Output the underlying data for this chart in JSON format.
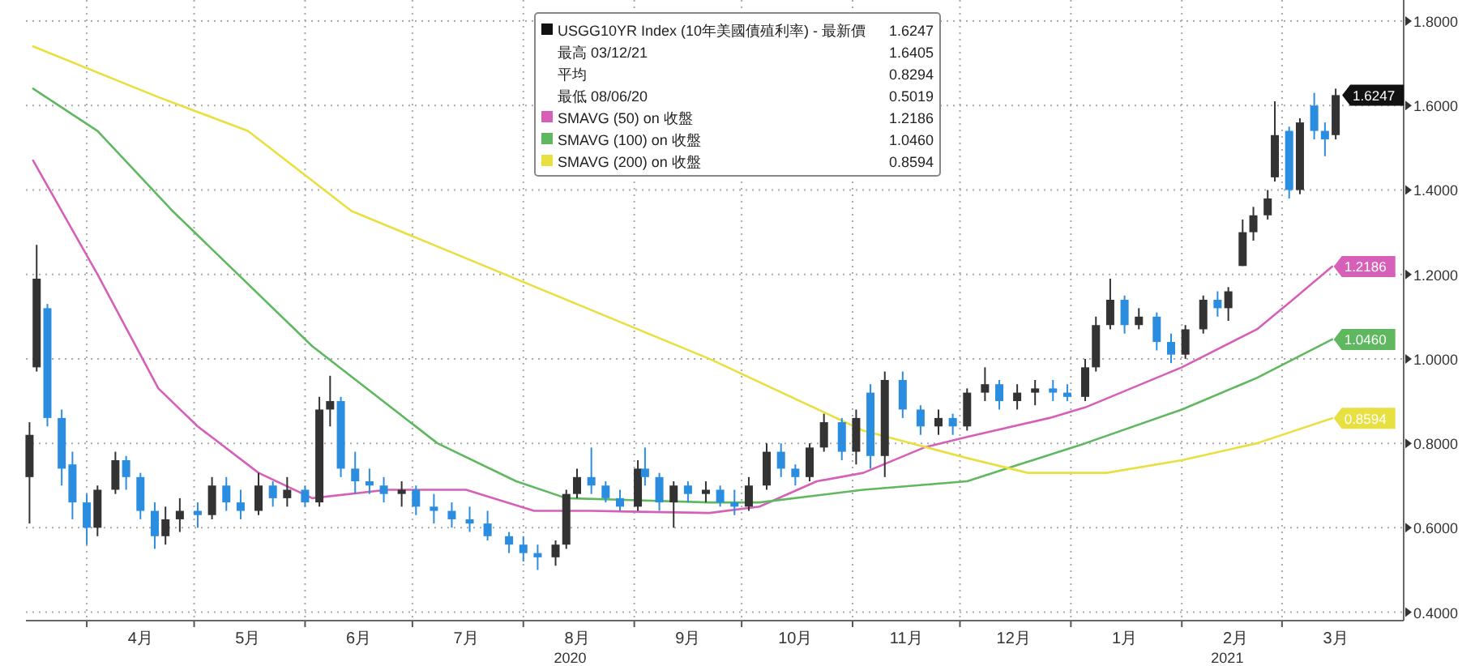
{
  "chart_data": {
    "type": "candlestick",
    "legend_title": "USGG10YR Index (10年美國債殖利率) - 最新價",
    "legend": "top",
    "grid": true,
    "annotations": [
      "最高 03/12/21 1.6405",
      "平均 0.8294",
      "最低 08/06/20 0.5019",
      "2020",
      "2021"
    ],
    "xlim": [
      "2020-03-15",
      "2021-04-04"
    ],
    "ylim": [
      0.38,
      1.85
    ],
    "xticks": [
      {
        "value": "2020-04-01",
        "label": null
      },
      {
        "value": "2020-04-16",
        "label": "4月"
      },
      {
        "value": "2020-05-01",
        "label": null
      },
      {
        "value": "2020-05-16",
        "label": "5月"
      },
      {
        "value": "2020-06-01",
        "label": null
      },
      {
        "value": "2020-06-16",
        "label": "6月"
      },
      {
        "value": "2020-07-01",
        "label": null
      },
      {
        "value": "2020-07-16",
        "label": "7月"
      },
      {
        "value": "2020-08-01",
        "label": null
      },
      {
        "value": "2020-08-16",
        "label": "8月"
      },
      {
        "value": "2020-09-01",
        "label": null
      },
      {
        "value": "2020-09-16",
        "label": "9月"
      },
      {
        "value": "2020-10-01",
        "label": null
      },
      {
        "value": "2020-10-16",
        "label": "10月"
      },
      {
        "value": "2020-11-01",
        "label": null
      },
      {
        "value": "2020-11-16",
        "label": "11月"
      },
      {
        "value": "2020-12-01",
        "label": null
      },
      {
        "value": "2020-12-16",
        "label": "12月"
      },
      {
        "value": "2021-01-01",
        "label": null
      },
      {
        "value": "2021-01-16",
        "label": "1月"
      },
      {
        "value": "2021-02-01",
        "label": null
      },
      {
        "value": "2021-02-16",
        "label": "2月"
      },
      {
        "value": "2021-03-01",
        "label": null
      },
      {
        "value": "2021-03-16",
        "label": "3月"
      }
    ],
    "yticks": [
      {
        "value": 0.4,
        "label": "0.4000"
      },
      {
        "value": 0.6,
        "label": "0.6000"
      },
      {
        "value": 0.8,
        "label": "0.8000"
      },
      {
        "value": 1.0,
        "label": "1.0000"
      },
      {
        "value": 1.2,
        "label": "1.2000"
      },
      {
        "value": 1.4,
        "label": "1.4000"
      },
      {
        "value": 1.6,
        "label": "1.6000"
      },
      {
        "value": 1.8,
        "label": "1.8000"
      }
    ],
    "x": [
      "2020-03-16",
      "2020-03-18",
      "2020-03-21",
      "2020-03-25",
      "2020-03-28",
      "2020-04-01",
      "2020-04-04",
      "2020-04-09",
      "2020-04-12",
      "2020-04-16",
      "2020-04-20",
      "2020-04-23",
      "2020-04-27",
      "2020-05-02",
      "2020-05-06",
      "2020-05-10",
      "2020-05-14",
      "2020-05-19",
      "2020-05-23",
      "2020-05-27",
      "2020-06-01",
      "2020-06-05",
      "2020-06-08",
      "2020-06-11",
      "2020-06-15",
      "2020-06-19",
      "2020-06-23",
      "2020-06-28",
      "2020-07-02",
      "2020-07-07",
      "2020-07-12",
      "2020-07-17",
      "2020-07-22",
      "2020-07-28",
      "2020-08-01",
      "2020-08-05",
      "2020-08-10",
      "2020-08-13",
      "2020-08-16",
      "2020-08-20",
      "2020-08-24",
      "2020-08-28",
      "2020-09-02",
      "2020-09-04",
      "2020-09-08",
      "2020-09-12",
      "2020-09-16",
      "2020-09-21",
      "2020-09-25",
      "2020-09-29",
      "2020-10-03",
      "2020-10-08",
      "2020-10-12",
      "2020-10-16",
      "2020-10-20",
      "2020-10-24",
      "2020-10-29",
      "2020-11-02",
      "2020-11-06",
      "2020-11-10",
      "2020-11-15",
      "2020-11-20",
      "2020-11-25",
      "2020-11-29",
      "2020-12-03",
      "2020-12-08",
      "2020-12-12",
      "2020-12-17",
      "2020-12-22",
      "2020-12-27",
      "2020-12-31",
      "2021-01-05",
      "2021-01-08",
      "2021-01-12",
      "2021-01-16",
      "2021-01-20",
      "2021-01-25",
      "2021-01-29",
      "2021-02-02",
      "2021-02-07",
      "2021-02-11",
      "2021-02-14",
      "2021-02-18",
      "2021-02-21",
      "2021-02-25",
      "2021-02-27",
      "2021-03-03",
      "2021-03-06",
      "2021-03-10",
      "2021-03-13",
      "2021-03-16"
    ],
    "ohlc": [
      [
        0.72,
        0.85,
        0.61,
        0.82
      ],
      [
        0.98,
        1.27,
        0.97,
        1.19
      ],
      [
        1.12,
        1.13,
        0.84,
        0.86
      ],
      [
        0.86,
        0.88,
        0.7,
        0.74
      ],
      [
        0.75,
        0.78,
        0.62,
        0.66
      ],
      [
        0.66,
        0.68,
        0.56,
        0.6
      ],
      [
        0.6,
        0.7,
        0.58,
        0.69
      ],
      [
        0.69,
        0.78,
        0.68,
        0.76
      ],
      [
        0.76,
        0.77,
        0.69,
        0.72
      ],
      [
        0.72,
        0.73,
        0.62,
        0.64
      ],
      [
        0.64,
        0.66,
        0.55,
        0.58
      ],
      [
        0.58,
        0.65,
        0.56,
        0.62
      ],
      [
        0.62,
        0.67,
        0.59,
        0.64
      ],
      [
        0.64,
        0.66,
        0.6,
        0.63
      ],
      [
        0.63,
        0.72,
        0.62,
        0.7
      ],
      [
        0.7,
        0.72,
        0.64,
        0.66
      ],
      [
        0.66,
        0.69,
        0.62,
        0.64
      ],
      [
        0.64,
        0.73,
        0.63,
        0.7
      ],
      [
        0.7,
        0.71,
        0.65,
        0.67
      ],
      [
        0.67,
        0.72,
        0.65,
        0.69
      ],
      [
        0.69,
        0.7,
        0.65,
        0.66
      ],
      [
        0.66,
        0.91,
        0.65,
        0.88
      ],
      [
        0.88,
        0.96,
        0.84,
        0.9
      ],
      [
        0.9,
        0.91,
        0.72,
        0.74
      ],
      [
        0.74,
        0.78,
        0.68,
        0.71
      ],
      [
        0.71,
        0.74,
        0.68,
        0.7
      ],
      [
        0.7,
        0.72,
        0.66,
        0.68
      ],
      [
        0.68,
        0.71,
        0.65,
        0.69
      ],
      [
        0.69,
        0.7,
        0.63,
        0.65
      ],
      [
        0.65,
        0.68,
        0.61,
        0.64
      ],
      [
        0.64,
        0.66,
        0.6,
        0.62
      ],
      [
        0.62,
        0.65,
        0.59,
        0.61
      ],
      [
        0.61,
        0.64,
        0.57,
        0.58
      ],
      [
        0.58,
        0.59,
        0.54,
        0.56
      ],
      [
        0.56,
        0.58,
        0.52,
        0.54
      ],
      [
        0.54,
        0.56,
        0.5,
        0.53
      ],
      [
        0.53,
        0.57,
        0.51,
        0.56
      ],
      [
        0.56,
        0.69,
        0.55,
        0.68
      ],
      [
        0.68,
        0.74,
        0.67,
        0.72
      ],
      [
        0.72,
        0.79,
        0.68,
        0.7
      ],
      [
        0.7,
        0.71,
        0.66,
        0.67
      ],
      [
        0.67,
        0.69,
        0.64,
        0.65
      ],
      [
        0.65,
        0.76,
        0.64,
        0.74
      ],
      [
        0.74,
        0.79,
        0.7,
        0.72
      ],
      [
        0.72,
        0.73,
        0.64,
        0.66
      ],
      [
        0.66,
        0.71,
        0.6,
        0.7
      ],
      [
        0.7,
        0.71,
        0.66,
        0.68
      ],
      [
        0.68,
        0.71,
        0.66,
        0.69
      ],
      [
        0.69,
        0.7,
        0.65,
        0.66
      ],
      [
        0.66,
        0.69,
        0.63,
        0.65
      ],
      [
        0.65,
        0.72,
        0.64,
        0.7
      ],
      [
        0.7,
        0.8,
        0.69,
        0.78
      ],
      [
        0.78,
        0.8,
        0.72,
        0.74
      ],
      [
        0.74,
        0.75,
        0.7,
        0.72
      ],
      [
        0.72,
        0.8,
        0.71,
        0.79
      ],
      [
        0.79,
        0.87,
        0.78,
        0.85
      ],
      [
        0.85,
        0.86,
        0.76,
        0.78
      ],
      [
        0.78,
        0.88,
        0.75,
        0.86
      ],
      [
        0.92,
        0.94,
        0.74,
        0.77
      ],
      [
        0.77,
        0.97,
        0.72,
        0.95
      ],
      [
        0.95,
        0.97,
        0.86,
        0.88
      ],
      [
        0.88,
        0.89,
        0.82,
        0.84
      ],
      [
        0.84,
        0.88,
        0.82,
        0.86
      ],
      [
        0.86,
        0.87,
        0.82,
        0.84
      ],
      [
        0.84,
        0.93,
        0.83,
        0.92
      ],
      [
        0.92,
        0.98,
        0.9,
        0.94
      ],
      [
        0.94,
        0.95,
        0.88,
        0.9
      ],
      [
        0.9,
        0.94,
        0.88,
        0.92
      ],
      [
        0.92,
        0.95,
        0.89,
        0.93
      ],
      [
        0.93,
        0.95,
        0.9,
        0.92
      ],
      [
        0.92,
        0.94,
        0.9,
        0.91
      ],
      [
        0.91,
        1.0,
        0.9,
        0.98
      ],
      [
        0.98,
        1.1,
        0.97,
        1.08
      ],
      [
        1.08,
        1.19,
        1.07,
        1.14
      ],
      [
        1.14,
        1.15,
        1.06,
        1.08
      ],
      [
        1.08,
        1.12,
        1.07,
        1.1
      ],
      [
        1.1,
        1.11,
        1.02,
        1.04
      ],
      [
        1.04,
        1.06,
        0.99,
        1.01
      ],
      [
        1.01,
        1.08,
        1.0,
        1.07
      ],
      [
        1.07,
        1.15,
        1.06,
        1.14
      ],
      [
        1.14,
        1.16,
        1.1,
        1.12
      ],
      [
        1.12,
        1.17,
        1.09,
        1.16
      ],
      [
        1.22,
        1.33,
        1.22,
        1.3
      ],
      [
        1.3,
        1.36,
        1.28,
        1.34
      ],
      [
        1.34,
        1.4,
        1.33,
        1.38
      ],
      [
        1.43,
        1.61,
        1.42,
        1.53
      ],
      [
        1.54,
        1.55,
        1.38,
        1.4
      ],
      [
        1.4,
        1.57,
        1.39,
        1.56
      ],
      [
        1.6,
        1.63,
        1.52,
        1.54
      ],
      [
        1.54,
        1.56,
        1.48,
        1.52
      ],
      [
        1.53,
        1.64,
        1.52,
        1.6247
      ]
    ],
    "colors": [
      "#333333",
      "#333333",
      "#2b8de0",
      "#2b8de0",
      "#2b8de0",
      "#2b8de0",
      "#333333",
      "#333333",
      "#2b8de0",
      "#2b8de0",
      "#2b8de0",
      "#333333",
      "#333333",
      "#2b8de0",
      "#333333",
      "#2b8de0",
      "#2b8de0",
      "#333333",
      "#2b8de0",
      "#333333",
      "#2b8de0",
      "#333333",
      "#333333",
      "#2b8de0",
      "#2b8de0",
      "#2b8de0",
      "#2b8de0",
      "#333333",
      "#2b8de0",
      "#2b8de0",
      "#2b8de0",
      "#2b8de0",
      "#2b8de0",
      "#2b8de0",
      "#2b8de0",
      "#2b8de0",
      "#333333",
      "#333333",
      "#333333",
      "#2b8de0",
      "#2b8de0",
      "#2b8de0",
      "#333333",
      "#2b8de0",
      "#2b8de0",
      "#333333",
      "#2b8de0",
      "#333333",
      "#2b8de0",
      "#2b8de0",
      "#333333",
      "#333333",
      "#2b8de0",
      "#2b8de0",
      "#333333",
      "#333333",
      "#2b8de0",
      "#333333",
      "#2b8de0",
      "#333333",
      "#2b8de0",
      "#2b8de0",
      "#333333",
      "#2b8de0",
      "#333333",
      "#333333",
      "#2b8de0",
      "#333333",
      "#333333",
      "#2b8de0",
      "#2b8de0",
      "#333333",
      "#333333",
      "#333333",
      "#2b8de0",
      "#333333",
      "#2b8de0",
      "#2b8de0",
      "#333333",
      "#333333",
      "#2b8de0",
      "#333333",
      "#333333",
      "#333333",
      "#333333",
      "#333333",
      "#2b8de0",
      "#333333",
      "#2b8de0",
      "#2b8de0",
      "#333333"
    ],
    "value_labels": [
      null,
      null,
      null,
      null,
      null,
      null,
      null,
      null,
      null,
      null,
      null,
      null,
      null,
      null,
      null,
      null,
      null,
      null,
      null,
      null,
      null,
      null,
      null,
      null,
      null,
      null,
      null,
      null,
      null,
      null,
      null,
      null,
      null,
      null,
      null,
      null,
      null,
      null,
      null,
      null,
      null,
      null,
      null,
      null,
      null,
      null,
      null,
      null,
      null,
      null,
      null,
      null,
      null,
      null,
      null,
      null,
      null,
      null,
      null,
      null,
      null,
      null,
      null,
      null,
      null,
      null,
      null,
      null,
      null,
      null,
      null,
      null,
      null,
      null,
      null,
      null,
      null,
      null,
      null,
      null,
      null,
      null,
      null,
      null,
      null,
      null,
      null,
      null,
      null,
      null,
      "1.6247"
    ],
    "series": [
      {
        "name": "SMAVG (50) on 收盤",
        "type": "line",
        "color": "#d660b8",
        "x": [
          "2020-03-17",
          "2020-03-25",
          "2020-04-04",
          "2020-04-21",
          "2020-05-02",
          "2020-05-19",
          "2020-06-03",
          "2020-06-24",
          "2020-07-16",
          "2020-08-04",
          "2020-08-20",
          "2020-09-22",
          "2020-10-06",
          "2020-10-22",
          "2020-11-04",
          "2020-11-21",
          "2020-12-03",
          "2020-12-26",
          "2021-01-05",
          "2021-02-01",
          "2021-02-22",
          "2021-03-04",
          "2021-03-15"
        ],
        "values": [
          1.47,
          1.35,
          1.2,
          0.93,
          0.84,
          0.73,
          0.67,
          0.69,
          0.69,
          0.64,
          0.64,
          0.635,
          0.65,
          0.71,
          0.73,
          0.79,
          0.815,
          0.86,
          0.885,
          0.98,
          1.07,
          1.14,
          1.2186
        ],
        "value_labels": [
          null,
          null,
          null,
          null,
          null,
          null,
          null,
          null,
          null,
          null,
          null,
          null,
          null,
          null,
          null,
          null,
          null,
          null,
          null,
          null,
          null,
          null,
          "1.2186"
        ]
      },
      {
        "name": "SMAVG (100) on 收盤",
        "type": "line",
        "color": "#5fb860",
        "x": [
          "2020-03-17",
          "2020-04-04",
          "2020-04-25",
          "2020-06-03",
          "2020-07-08",
          "2020-07-30",
          "2020-08-13",
          "2020-09-22",
          "2020-10-06",
          "2020-11-04",
          "2020-12-03",
          "2021-01-05",
          "2021-02-01",
          "2021-02-22",
          "2021-03-15"
        ],
        "values": [
          1.64,
          1.54,
          1.35,
          1.03,
          0.8,
          0.71,
          0.67,
          0.66,
          0.66,
          0.69,
          0.71,
          0.8,
          0.88,
          0.955,
          1.046
        ],
        "value_labels": [
          null,
          null,
          null,
          null,
          null,
          null,
          null,
          null,
          null,
          null,
          null,
          null,
          null,
          null,
          "1.0460"
        ]
      },
      {
        "name": "SMAVG (200) on 收盤",
        "type": "line",
        "color": "#e8e040",
        "x": [
          "2020-03-17",
          "2020-04-21",
          "2020-05-16",
          "2020-06-14",
          "2020-09-22",
          "2020-11-04",
          "2020-12-03",
          "2020-12-20",
          "2021-01-11",
          "2021-02-01",
          "2021-02-22",
          "2021-03-15"
        ],
        "values": [
          1.74,
          1.62,
          1.54,
          1.35,
          1.0,
          0.83,
          0.765,
          0.73,
          0.73,
          0.76,
          0.8,
          0.8594
        ],
        "value_labels": [
          null,
          null,
          null,
          null,
          null,
          null,
          null,
          null,
          null,
          null,
          null,
          "0.8594"
        ]
      }
    ]
  }
}
